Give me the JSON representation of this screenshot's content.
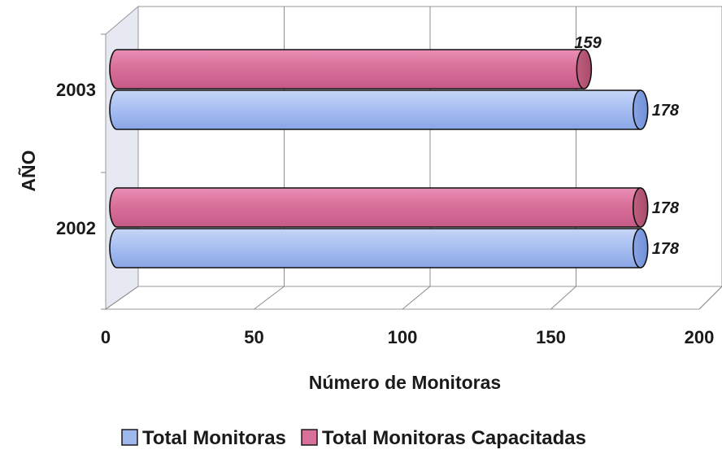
{
  "chart_data": {
    "type": "bar",
    "orientation": "horizontal",
    "categories": [
      "2002",
      "2003"
    ],
    "series": [
      {
        "name": "Total Monitoras",
        "values": [
          178,
          178
        ],
        "color": "#9fb8ef"
      },
      {
        "name": "Total Monitoras Capacitadas",
        "values": [
          178,
          159
        ],
        "color": "#d8709a"
      }
    ],
    "xlabel": "Número de Monitoras",
    "ylabel": "AÑO",
    "xlim": [
      0,
      200
    ],
    "xticks": [
      0,
      50,
      100,
      150,
      200
    ],
    "grid": true,
    "legend_position": "bottom"
  }
}
